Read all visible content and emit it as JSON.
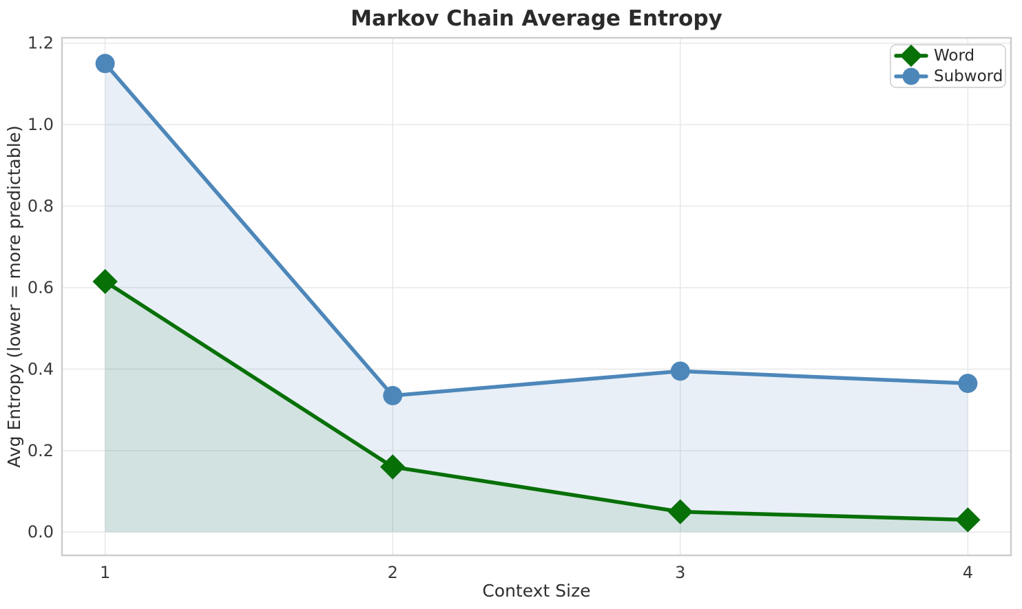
{
  "chart_data": {
    "type": "line",
    "title": "Markov Chain Average Entropy",
    "xlabel": "Context Size",
    "ylabel": "Avg Entropy (lower = more predictable)",
    "x": [
      1,
      2,
      3,
      4
    ],
    "series": [
      {
        "name": "Word",
        "values": [
          0.615,
          0.16,
          0.05,
          0.03
        ],
        "color": "#077007",
        "fill_alpha": 0.1,
        "marker": "diamond"
      },
      {
        "name": "Subword",
        "values": [
          1.15,
          0.335,
          0.395,
          0.365
        ],
        "color": "#4d87ba",
        "fill_alpha": 0.13,
        "marker": "circle"
      }
    ],
    "xlim": [
      0.85,
      4.15
    ],
    "ylim": [
      -0.057,
      1.213
    ],
    "xtick_values": [
      1,
      2,
      3,
      4
    ],
    "xtick_labels": [
      "1",
      "2",
      "3",
      "4"
    ],
    "ytick_values": [
      0.0,
      0.2,
      0.4,
      0.6,
      0.8,
      1.0,
      1.2
    ],
    "ytick_labels": [
      "0.0",
      "0.2",
      "0.4",
      "0.6",
      "0.8",
      "1.0",
      "1.2"
    ],
    "grid": true,
    "area_fill_to": 0,
    "legend_position": "upper right",
    "legend_labels": [
      "Word",
      "Subword"
    ]
  },
  "style_colors": {
    "grid": "#e8e8e8",
    "frame": "#cdcdcd",
    "title_text": "#2b2b2b",
    "axis_text": "#333333",
    "tick_text": "#3a3a3a",
    "legend_border": "#cccccc",
    "legend_bg": "rgba(255,255,255,0.85)"
  }
}
